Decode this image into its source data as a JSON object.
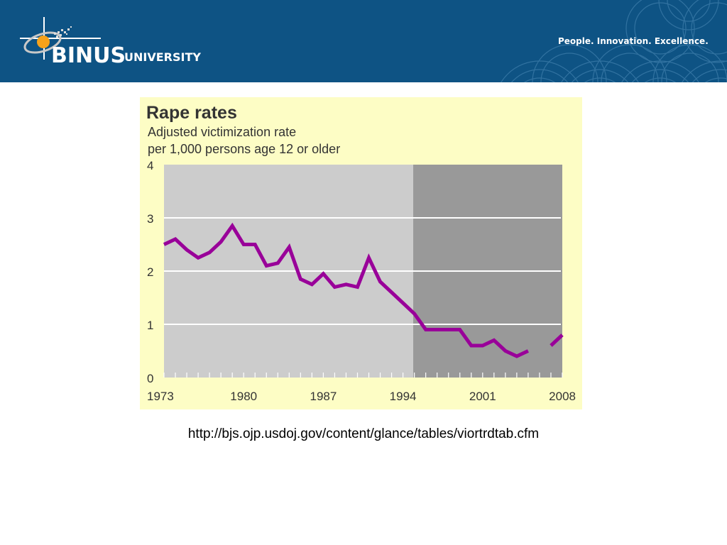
{
  "header": {
    "logo_word": "BINUS",
    "logo_suffix": "UNIVERSITY",
    "tagline": "People. Innovation. Excellence."
  },
  "colors": {
    "banner": "#0e5384",
    "panel": "#fdfdc5",
    "plot_light": "#cccccc",
    "plot_dark": "#999999",
    "line": "#990099"
  },
  "chart_data": {
    "type": "line",
    "title": "Rape rates",
    "subtitle_lines": [
      "Adjusted victimization rate",
      "per 1,000 persons age 12 or older"
    ],
    "x_ticks": [
      "1973",
      "1980",
      "1987",
      "1994",
      "2001",
      "2008"
    ],
    "y_ticks": [
      "0",
      "1",
      "2",
      "3",
      "4"
    ],
    "xlim": [
      1973,
      2008
    ],
    "ylim": [
      0,
      4
    ],
    "grid": true,
    "shaded_from": 1994.9,
    "series": [
      {
        "x": [
          1973,
          1974,
          1975,
          1976,
          1977,
          1978,
          1979,
          1980,
          1981,
          1982,
          1983,
          1984,
          1985,
          1986,
          1987,
          1988,
          1989,
          1990,
          1991,
          1992,
          1993,
          1994,
          1995,
          1996,
          1997,
          1998,
          1999,
          2000,
          2001,
          2002,
          2003,
          2004,
          2005,
          2006,
          2007,
          2008
        ],
        "values": [
          2.5,
          2.6,
          2.4,
          2.25,
          2.35,
          2.55,
          2.85,
          2.5,
          2.5,
          2.1,
          2.15,
          2.45,
          1.85,
          1.75,
          1.95,
          1.7,
          1.75,
          1.7,
          2.25,
          1.8,
          1.6,
          1.4,
          1.2,
          0.9,
          0.9,
          0.9,
          0.9,
          0.6,
          0.6,
          0.7,
          0.5,
          0.4,
          0.5,
          null,
          0.6,
          0.8
        ]
      }
    ]
  },
  "source": "http://bjs.ojp.usdoj.gov/content/glance/tables/viortrdtab.cfm"
}
